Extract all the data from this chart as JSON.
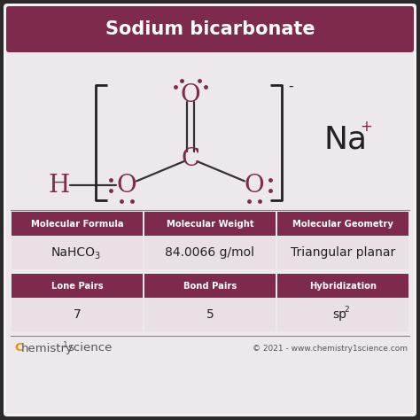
{
  "title": "Sodium bicarbonate",
  "title_bg": "#7d2a4d",
  "title_color": "#ffffff",
  "body_bg": "#ede8ec",
  "outer_bg": "#2a2a2a",
  "molecule_color": "#7d2a4d",
  "bond_color": "#333333",
  "bracket_color": "#222222",
  "na_color": "#222222",
  "table_header_bg": "#7d2a4d",
  "table_header_color": "#ffffff",
  "table_body_bg": "#e8e0e5",
  "table_body_color": "#222222",
  "table_divider": "#9a7a8a",
  "row1_headers": [
    "Molecular Formula",
    "Molecular Weight",
    "Molecular Geometry"
  ],
  "row1_values": [
    "NaHCO3",
    "84.0066 g/mol",
    "Triangular planar"
  ],
  "row2_headers": [
    "Lone Pairs",
    "Bond Pairs",
    "Hybridization"
  ],
  "row2_values": [
    "7",
    "5",
    "sp2"
  ],
  "footer_c_color": "#e8920c",
  "footer_text_color": "#555555",
  "footer_right": "© 2021 - www.chemistry1science.com",
  "na_label": "Na",
  "na_superscript": "+",
  "bracket_minus": "-"
}
